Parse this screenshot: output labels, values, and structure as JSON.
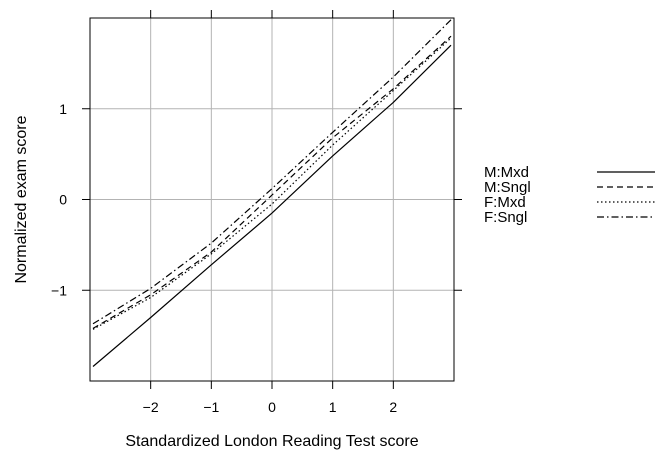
{
  "chart_data": {
    "type": "line",
    "title": "",
    "xlabel": "Standardized London Reading Test score",
    "ylabel": "Normalized exam score",
    "xlim": [
      -3,
      3
    ],
    "ylim": [
      -2,
      2
    ],
    "xticks": [
      -2,
      -1,
      0,
      1,
      2
    ],
    "xtick_labels": [
      "−2",
      "−1",
      "0",
      "1",
      "2"
    ],
    "yticks": [
      -1,
      0,
      1
    ],
    "ytick_labels": [
      "−1",
      "0",
      "1"
    ],
    "grid": true,
    "legend_position": "right",
    "series": [
      {
        "name": "M:Mxd",
        "line_style": "solid",
        "x": [
          -2.95,
          -2.0,
          -1.0,
          0.0,
          1.0,
          2.0,
          2.95
        ],
        "y": [
          -1.84,
          -1.3,
          -0.72,
          -0.15,
          0.48,
          1.07,
          1.7
        ]
      },
      {
        "name": "M:Sngl",
        "line_style": "dashed",
        "x": [
          -2.95,
          -2.0,
          -1.0,
          0.0,
          1.0,
          2.0,
          2.95
        ],
        "y": [
          -1.42,
          -1.05,
          -0.58,
          0.05,
          0.68,
          1.22,
          1.8
        ]
      },
      {
        "name": "F:Mxd",
        "line_style": "dotted",
        "x": [
          -2.95,
          -2.0,
          -1.0,
          0.0,
          1.0,
          2.0,
          2.95
        ],
        "y": [
          -1.43,
          -1.08,
          -0.6,
          -0.05,
          0.6,
          1.2,
          1.78
        ]
      },
      {
        "name": "F:Sngl",
        "line_style": "dashdot",
        "x": [
          -2.95,
          -2.0,
          -1.0,
          0.0,
          1.0,
          2.0,
          2.95
        ],
        "y": [
          -1.37,
          -0.98,
          -0.48,
          0.12,
          0.74,
          1.35,
          1.98
        ]
      }
    ]
  }
}
